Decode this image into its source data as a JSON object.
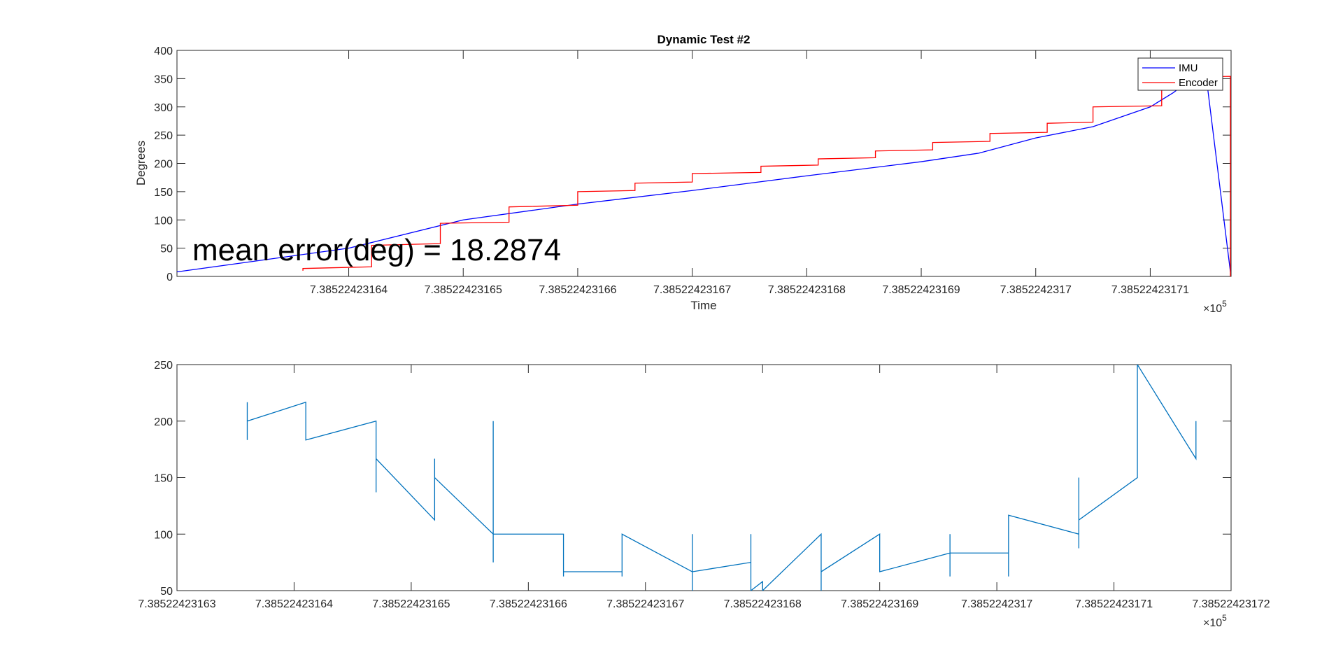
{
  "chart_data": [
    {
      "type": "line",
      "title": "Dynamic Test #2",
      "xlabel": "Time",
      "ylabel": "Degrees",
      "x_multiplier_label": "×10",
      "x_multiplier_exp": "5",
      "xlim": [
        7.385224231625,
        7.38522423171706
      ],
      "ylim": [
        0,
        400
      ],
      "yticks": [
        0,
        50,
        100,
        150,
        200,
        250,
        300,
        350,
        400
      ],
      "xticks": [
        {
          "value": 7.38522423164,
          "label": "7.38522423164"
        },
        {
          "value": 7.38522423165,
          "label": "7.38522423165"
        },
        {
          "value": 7.38522423166,
          "label": "7.38522423166"
        },
        {
          "value": 7.38522423167,
          "label": "7.38522423167"
        },
        {
          "value": 7.38522423168,
          "label": "7.38522423168"
        },
        {
          "value": 7.38522423169,
          "label": "7.38522423169"
        },
        {
          "value": 7.3852242317,
          "label": "7.3852242317"
        },
        {
          "value": 7.38522423171,
          "label": "7.38522423171"
        }
      ],
      "legend_position": "top-right",
      "annotation": "mean error(deg) = 18.2874",
      "series": [
        {
          "name": "IMU",
          "color": "#0000ff",
          "points": [
            [
              7.385224231625,
              8
            ],
            [
              7.38522423164,
              50
            ],
            [
              7.38522423165,
              100
            ],
            [
              7.38522423166,
              128
            ],
            [
              7.38522423167,
              152
            ],
            [
              7.38522423168,
              178
            ],
            [
              7.38522423169,
              203
            ],
            [
              7.385224231695,
              218
            ],
            [
              7.3852242317,
              245
            ],
            [
              7.385224231705,
              265
            ],
            [
              7.38522423171,
              300
            ],
            [
              7.385224231712,
              325
            ],
            [
              7.385224231713,
              340
            ],
            [
              7.385224231715,
              335
            ],
            [
              7.385224231717,
              8
            ]
          ]
        },
        {
          "name": "Encoder",
          "color": "#ff0000",
          "points": [
            [
              7.385224231636,
              10
            ],
            [
              7.385224231636,
              14
            ],
            [
              7.385224231642,
              17
            ],
            [
              7.385224231642,
              55
            ],
            [
              7.385224231648,
              58
            ],
            [
              7.385224231648,
              94
            ],
            [
              7.385224231654,
              96
            ],
            [
              7.385224231654,
              123
            ],
            [
              7.38522423166,
              126
            ],
            [
              7.38522423166,
              150
            ],
            [
              7.385224231665,
              152
            ],
            [
              7.385224231665,
              165
            ],
            [
              7.38522423167,
              167
            ],
            [
              7.38522423167,
              182
            ],
            [
              7.385224231676,
              184
            ],
            [
              7.385224231676,
              195
            ],
            [
              7.385224231681,
              197
            ],
            [
              7.385224231681,
              208
            ],
            [
              7.385224231686,
              210
            ],
            [
              7.385224231686,
              222
            ],
            [
              7.385224231691,
              224
            ],
            [
              7.385224231691,
              237
            ],
            [
              7.385224231696,
              239
            ],
            [
              7.385224231696,
              253
            ],
            [
              7.385224231701,
              255
            ],
            [
              7.385224231701,
              271
            ],
            [
              7.385224231705,
              273
            ],
            [
              7.385224231705,
              300
            ],
            [
              7.385224231711,
              302
            ],
            [
              7.385224231711,
              352
            ],
            [
              7.385224231717,
              354
            ],
            [
              7.385224231717,
              0
            ]
          ]
        }
      ]
    },
    {
      "type": "line",
      "title": "",
      "xlabel": "",
      "ylabel": "",
      "x_multiplier_label": "×10",
      "x_multiplier_exp": "5",
      "xlim": [
        7.38522423163,
        7.38522423172
      ],
      "ylim": [
        50,
        250
      ],
      "yticks": [
        50,
        100,
        150,
        200,
        250
      ],
      "xticks": [
        {
          "value": 7.38522423163,
          "label": "7.38522423163"
        },
        {
          "value": 7.38522423164,
          "label": "7.38522423164"
        },
        {
          "value": 7.38522423165,
          "label": "7.38522423165"
        },
        {
          "value": 7.38522423166,
          "label": "7.38522423166"
        },
        {
          "value": 7.38522423167,
          "label": "7.38522423167"
        },
        {
          "value": 7.38522423168,
          "label": "7.38522423168"
        },
        {
          "value": 7.38522423169,
          "label": "7.38522423169"
        },
        {
          "value": 7.3852242317,
          "label": "7.3852242317"
        },
        {
          "value": 7.38522423171,
          "label": "7.38522423171"
        },
        {
          "value": 7.38522423172,
          "label": "7.38522423172"
        }
      ],
      "series": [
        {
          "color": "#0072bd",
          "points": [
            [
              7.385224231636,
              216.7
            ],
            [
              7.385224231636,
              183.3
            ],
            [
              7.385224231636,
              200
            ],
            [
              7.385224231641,
              216.7
            ],
            [
              7.385224231641,
              183.3
            ],
            [
              7.385224231647,
              200
            ],
            [
              7.385224231647,
              137
            ],
            [
              7.385224231647,
              166.7
            ],
            [
              7.385224231652,
              112.5
            ],
            [
              7.385224231652,
              166.7
            ],
            [
              7.385224231652,
              150
            ],
            [
              7.385224231657,
              100
            ],
            [
              7.385224231657,
              200
            ],
            [
              7.385224231657,
              75
            ],
            [
              7.385224231657,
              100
            ],
            [
              7.385224231663,
              100
            ],
            [
              7.385224231663,
              62.5
            ],
            [
              7.385224231663,
              66.7
            ],
            [
              7.385224231668,
              66.7
            ],
            [
              7.385224231668,
              62.5
            ],
            [
              7.385224231668,
              100
            ],
            [
              7.385224231674,
              66.7
            ],
            [
              7.385224231674,
              100
            ],
            [
              7.385224231674,
              50
            ],
            [
              7.385224231674,
              66.7
            ],
            [
              7.385224231679,
              75
            ],
            [
              7.385224231679,
              100
            ],
            [
              7.385224231679,
              50
            ],
            [
              7.38522423168,
              58
            ],
            [
              7.38522423168,
              50
            ],
            [
              7.385224231685,
              100
            ],
            [
              7.385224231685,
              50
            ],
            [
              7.385224231685,
              66.7
            ],
            [
              7.38522423169,
              100
            ],
            [
              7.38522423169,
              66.7
            ],
            [
              7.385224231696,
              83.3
            ],
            [
              7.385224231696,
              100
            ],
            [
              7.385224231696,
              62.5
            ],
            [
              7.385224231696,
              83.3
            ],
            [
              7.385224231701,
              83.3
            ],
            [
              7.385224231701,
              62.5
            ],
            [
              7.385224231701,
              116.7
            ],
            [
              7.385224231707,
              100
            ],
            [
              7.385224231707,
              150
            ],
            [
              7.385224231707,
              87.5
            ],
            [
              7.385224231707,
              112.5
            ],
            [
              7.385224231712,
              150
            ],
            [
              7.385224231712,
              250
            ],
            [
              7.385224231717,
              166.7
            ],
            [
              7.385224231717,
              200
            ]
          ]
        }
      ]
    }
  ]
}
